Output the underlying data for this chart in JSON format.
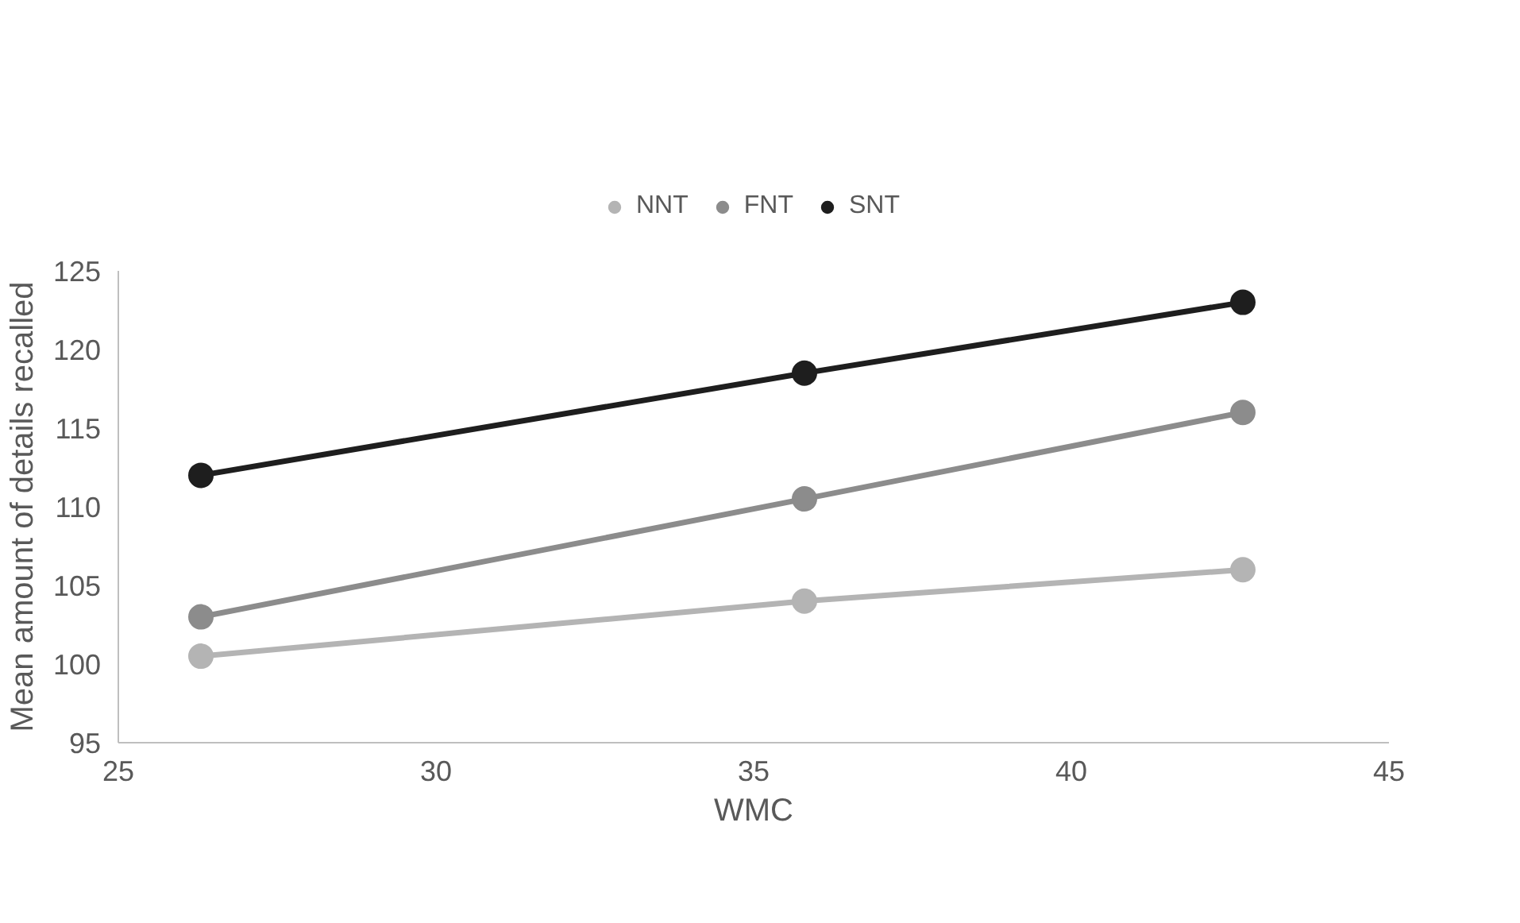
{
  "chart_data": {
    "type": "line",
    "xlabel": "WMC",
    "ylabel": "Mean amount of details recalled",
    "x": [
      26.3,
      35.8,
      42.7
    ],
    "series": [
      {
        "name": "NNT",
        "color": "#b4b4b4",
        "values": [
          100.5,
          104,
          106
        ]
      },
      {
        "name": "FNT",
        "color": "#8c8c8c",
        "values": [
          103,
          110.5,
          116
        ]
      },
      {
        "name": "SNT",
        "color": "#1e1e1e",
        "values": [
          112,
          118.5,
          123
        ]
      }
    ],
    "xlim": [
      25,
      45
    ],
    "xticks": [
      25,
      30,
      35,
      40,
      45
    ],
    "ylim": [
      95,
      125
    ],
    "yticks": [
      95,
      100,
      105,
      110,
      115,
      120,
      125
    ],
    "grid": false,
    "legend": "top",
    "marker": "circle",
    "line_style": "solid"
  }
}
